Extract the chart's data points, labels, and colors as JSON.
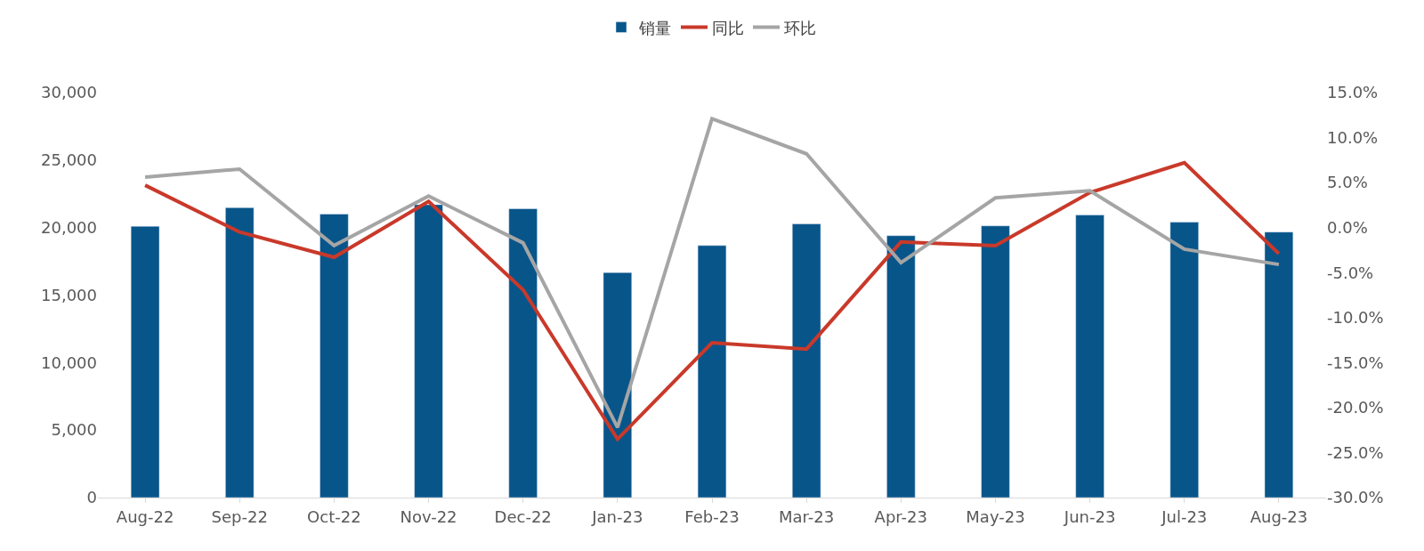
{
  "chart_data": {
    "type": "bar",
    "categories": [
      "Aug-22",
      "Sep-22",
      "Oct-22",
      "Nov-22",
      "Dec-22",
      "Jan-23",
      "Feb-23",
      "Mar-23",
      "Apr-23",
      "May-23",
      "Jun-23",
      "Jul-23",
      "Aug-23"
    ],
    "series": [
      {
        "name": "销量",
        "color": "#08558a",
        "values": [
          20100,
          21470,
          21000,
          21700,
          21400,
          16670,
          18670,
          20270,
          19400,
          20130,
          20930,
          20400,
          19670
        ]
      },
      {
        "name": "同比",
        "type": "line",
        "axis": "y2",
        "color": "#c9392a",
        "values": [
          4.7,
          -0.5,
          -3.3,
          2.9,
          -6.9,
          -23.5,
          -12.8,
          -13.5,
          -1.6,
          -2.0,
          3.9,
          7.2,
          -2.9
        ]
      },
      {
        "name": "环比",
        "type": "line",
        "axis": "y2",
        "color": "#a5a5a5",
        "values": [
          5.6,
          6.5,
          -2.0,
          3.5,
          -1.7,
          -22.2,
          12.1,
          8.2,
          -3.9,
          3.3,
          4.1,
          -2.4,
          -4.1
        ]
      }
    ],
    "ylim": [
      0,
      30000
    ],
    "yticks": [
      {
        "value": 0,
        "label": "0"
      },
      {
        "value": 5000,
        "label": "5,000"
      },
      {
        "value": 10000,
        "label": "10,000"
      },
      {
        "value": 15000,
        "label": "15,000"
      },
      {
        "value": 20000,
        "label": "20,000"
      },
      {
        "value": 25000,
        "label": "25,000"
      },
      {
        "value": 30000,
        "label": "30,000"
      }
    ],
    "y2lim": [
      -30,
      15
    ],
    "y2ticks": [
      {
        "value": -30,
        "label": "-30.0%"
      },
      {
        "value": -25,
        "label": "-25.0%"
      },
      {
        "value": -20,
        "label": "-20.0%"
      },
      {
        "value": -15,
        "label": "-15.0%"
      },
      {
        "value": -10,
        "label": "-10.0%"
      },
      {
        "value": -5,
        "label": "-5.0%"
      },
      {
        "value": 0,
        "label": "0.0%"
      },
      {
        "value": 5,
        "label": "5.0%"
      },
      {
        "value": 10,
        "label": "10.0%"
      },
      {
        "value": 15,
        "label": "15.0%"
      }
    ],
    "legend": "top",
    "marker": "none",
    "line_style": "solid"
  }
}
